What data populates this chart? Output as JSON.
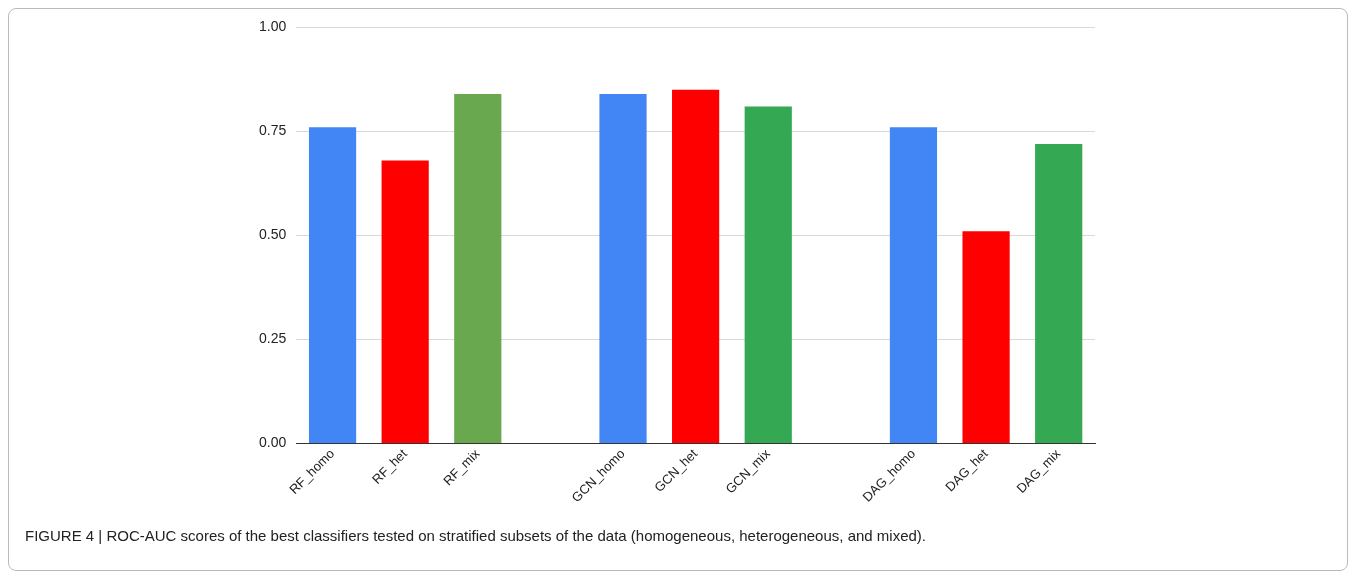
{
  "chart_data": {
    "type": "bar",
    "categories": [
      "RF_homo",
      "RF_het",
      "RF_mix",
      null,
      "GCN_homo",
      "GCN_het",
      "GCN_mix",
      null,
      "DAG_homo",
      "DAG_het",
      "DAG_mix"
    ],
    "values": [
      0.76,
      0.68,
      0.84,
      null,
      0.84,
      0.85,
      0.81,
      null,
      0.76,
      0.51,
      0.72
    ],
    "colors": [
      "#4285f4",
      "#ff0000",
      "#6aa84f",
      null,
      "#4285f4",
      "#ff0000",
      "#34a853",
      null,
      "#4285f4",
      "#ff0000",
      "#34a853"
    ],
    "ylim": [
      0,
      1
    ],
    "yticks": [
      {
        "value": 0,
        "label": "0.00"
      },
      {
        "value": 0.25,
        "label": "0.25"
      },
      {
        "value": 0.5,
        "label": "0.50"
      },
      {
        "value": 0.75,
        "label": "0.75"
      },
      {
        "value": 1,
        "label": "1.00"
      }
    ],
    "grid": "y",
    "annotations": [
      "FIGURE 4 | ROC-AUC scores of the best classifiers tested on stratified subsets of the data (homogeneous, heterogeneous, and mixed)."
    ]
  }
}
